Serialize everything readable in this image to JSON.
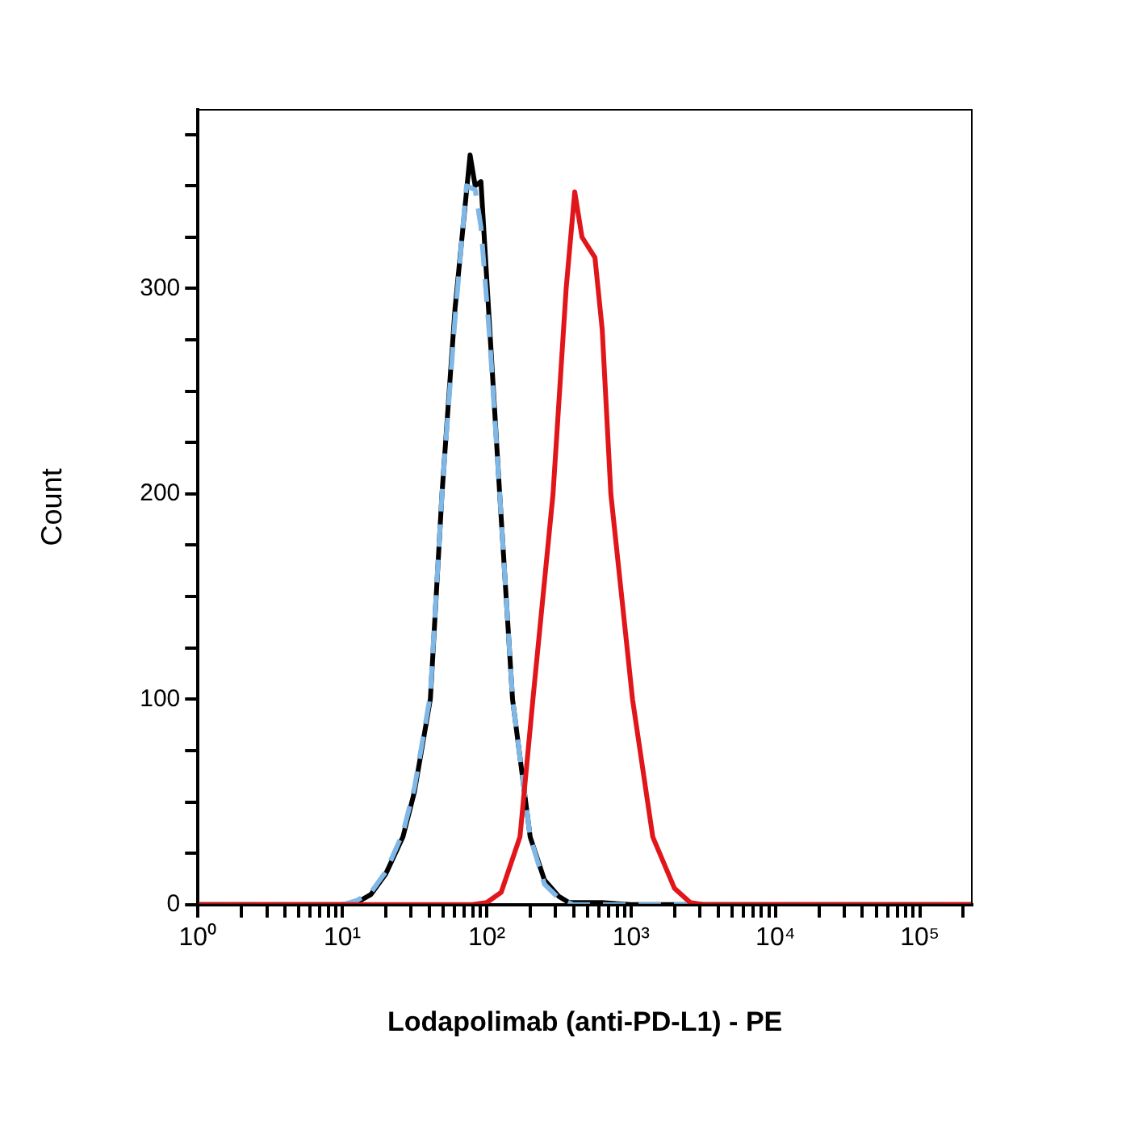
{
  "chart_data": {
    "type": "line",
    "xlabel": "Lodapolimab (anti-PD-L1) - PE",
    "ylabel": "Count",
    "log": "x",
    "grid": false,
    "legend": false,
    "marker": "none",
    "xlim": [
      1,
      229000
    ],
    "xticks": [
      {
        "value": 1,
        "label": "10⁰"
      },
      {
        "value": 2,
        "label": null
      },
      {
        "value": 3,
        "label": null
      },
      {
        "value": 4,
        "label": null
      },
      {
        "value": 5,
        "label": null
      },
      {
        "value": 6,
        "label": null
      },
      {
        "value": 7,
        "label": null
      },
      {
        "value": 8,
        "label": null
      },
      {
        "value": 9,
        "label": null
      },
      {
        "value": 10,
        "label": "10¹"
      },
      {
        "value": 20,
        "label": null
      },
      {
        "value": 30,
        "label": null
      },
      {
        "value": 40,
        "label": null
      },
      {
        "value": 50,
        "label": null
      },
      {
        "value": 60,
        "label": null
      },
      {
        "value": 70,
        "label": null
      },
      {
        "value": 80,
        "label": null
      },
      {
        "value": 90,
        "label": null
      },
      {
        "value": 100,
        "label": "10²"
      },
      {
        "value": 200,
        "label": null
      },
      {
        "value": 300,
        "label": null
      },
      {
        "value": 400,
        "label": null
      },
      {
        "value": 500,
        "label": null
      },
      {
        "value": 600,
        "label": null
      },
      {
        "value": 700,
        "label": null
      },
      {
        "value": 800,
        "label": null
      },
      {
        "value": 900,
        "label": null
      },
      {
        "value": 1000,
        "label": "10³"
      },
      {
        "value": 2000,
        "label": null
      },
      {
        "value": 3000,
        "label": null
      },
      {
        "value": 4000,
        "label": null
      },
      {
        "value": 5000,
        "label": null
      },
      {
        "value": 6000,
        "label": null
      },
      {
        "value": 7000,
        "label": null
      },
      {
        "value": 8000,
        "label": null
      },
      {
        "value": 9000,
        "label": null
      },
      {
        "value": 10000,
        "label": "10⁴"
      },
      {
        "value": 20000,
        "label": null
      },
      {
        "value": 30000,
        "label": null
      },
      {
        "value": 40000,
        "label": null
      },
      {
        "value": 50000,
        "label": null
      },
      {
        "value": 60000,
        "label": null
      },
      {
        "value": 70000,
        "label": null
      },
      {
        "value": 80000,
        "label": null
      },
      {
        "value": 90000,
        "label": null
      },
      {
        "value": 100000,
        "label": "10⁵"
      },
      {
        "value": 200000,
        "label": null
      }
    ],
    "ylim": [
      0,
      387
    ],
    "yticks": [
      0,
      {
        "value": 25,
        "label": null
      },
      {
        "value": 50,
        "label": null
      },
      {
        "value": 75,
        "label": null
      },
      100,
      {
        "value": 125,
        "label": null
      },
      {
        "value": 150,
        "label": null
      },
      {
        "value": 175,
        "label": null
      },
      200,
      {
        "value": 225,
        "label": null
      },
      {
        "value": 250,
        "label": null
      },
      {
        "value": 275,
        "label": null
      },
      300,
      {
        "value": 325,
        "label": null
      },
      {
        "value": 350,
        "label": null
      },
      {
        "value": 375,
        "label": null
      }
    ],
    "series": [
      {
        "color": "#000000",
        "line_style": "solid",
        "x": [
          1,
          10,
          12.6,
          15.8,
          20,
          26.3,
          31.6,
          40.7,
          49,
          60.3,
          76.7,
          83.2,
          91.2,
          105,
          123,
          151,
          200,
          251,
          316,
          372,
          631,
          1000,
          229000
        ],
        "values": [
          0,
          0,
          1,
          5,
          15,
          33,
          55,
          100,
          200,
          290,
          365,
          350,
          352,
          280,
          200,
          100,
          33,
          12,
          4,
          1,
          1,
          0,
          0
        ]
      },
      {
        "color": "#7fb8e6",
        "line_style": "dashed",
        "x": [
          1,
          10,
          12.6,
          15.8,
          20,
          26.3,
          31.6,
          40.7,
          49,
          60.3,
          72.4,
          83.2,
          91.2,
          105,
          123,
          151,
          200,
          251,
          316,
          398,
          1000,
          229000
        ],
        "values": [
          0,
          0,
          2,
          6,
          16,
          35,
          57,
          102,
          200,
          285,
          350,
          348,
          330,
          275,
          200,
          100,
          33,
          10,
          3,
          0,
          0,
          0
        ]
      },
      {
        "color": "#e0161b",
        "line_style": "solid",
        "x": [
          1,
          79.4,
          100,
          126,
          170,
          209,
          288,
          355,
          407,
          457,
          562,
          631,
          724,
          1023,
          1413,
          1995,
          2570,
          3162,
          229000
        ],
        "values": [
          0,
          0,
          1,
          6,
          33,
          100,
          200,
          300,
          347,
          325,
          315,
          280,
          200,
          100,
          33,
          8,
          1,
          0,
          0
        ]
      }
    ]
  }
}
